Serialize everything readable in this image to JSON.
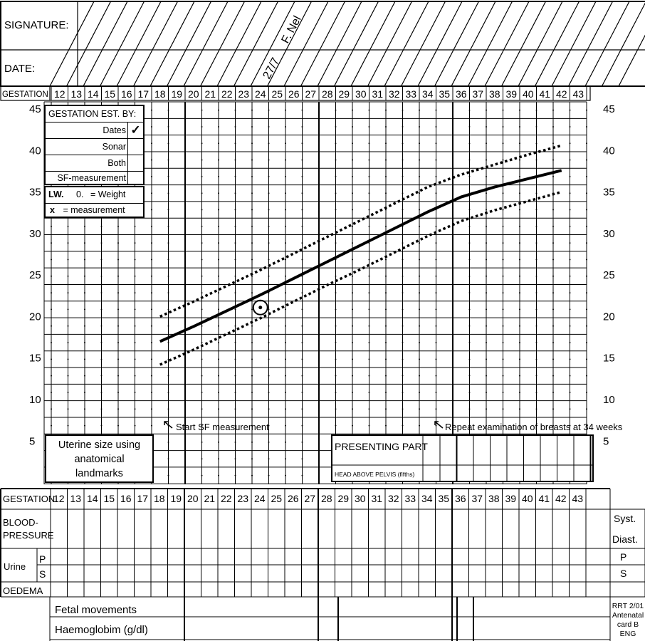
{
  "header": {
    "signature_label": "SIGNATURE:",
    "date_label": "DATE:",
    "entry_signature": "F. Nel",
    "entry_date": "27/7"
  },
  "gestation_label": "GESTATION",
  "weeks": [
    "12",
    "13",
    "14",
    "15",
    "16",
    "17",
    "18",
    "19",
    "20",
    "21",
    "22",
    "23",
    "24",
    "25",
    "26",
    "27",
    "28",
    "29",
    "30",
    "31",
    "32",
    "33",
    "34",
    "35",
    "36",
    "37",
    "38",
    "39",
    "40",
    "41",
    "42",
    "43"
  ],
  "y_ticks": [
    "45",
    "40",
    "35",
    "30",
    "25",
    "20",
    "15",
    "10",
    "5"
  ],
  "legend_est": {
    "title": "GESTATION EST. BY:",
    "rows": [
      {
        "label": "Dates",
        "mark": "✓"
      },
      {
        "label": "Sonar",
        "mark": ""
      },
      {
        "label": "Both",
        "mark": ""
      },
      {
        "label": "SF-measurement",
        "mark": ""
      }
    ]
  },
  "legend_symbols": {
    "lw": "LW.",
    "weight_symbol": "0.",
    "weight_text": "= Weight",
    "meas_symbol": "x",
    "meas_text": "= measurement"
  },
  "annotations": {
    "start_sf": "Start SF measurement",
    "repeat_breasts": "Repeat examination of breasts at 34 weeks"
  },
  "uterine_box": {
    "line1": "Uterine size using",
    "line2": "anatomical",
    "line3": "landmarks"
  },
  "presenting": {
    "title": "PRESENTING PART",
    "sub": "HEAD ABOVE PELVIS (fifths)"
  },
  "lower_table": {
    "bp1": "BLOOD-",
    "bp2": "PRESSURE",
    "syst": "Syst.",
    "diast": "Diast.",
    "urine": "Urine",
    "p": "P",
    "s": "S",
    "oedema": "OEDEMA",
    "fetal": "Fetal movements",
    "haemo": "Haemoglobim (g/dl)"
  },
  "footer_code": {
    "l1": "RRT 2/01",
    "l2": "Antenatal",
    "l3": "card B",
    "l4": "ENG"
  },
  "chart_data": {
    "type": "line",
    "xlabel": "GESTATION",
    "ylabel": "",
    "xlim": [
      12,
      43
    ],
    "ylim": [
      2,
      45
    ],
    "series": [
      {
        "style": "solid",
        "x": [
          18,
          20,
          22,
          24,
          26,
          28,
          30,
          32,
          34,
          36,
          38,
          40,
          42
        ],
        "y": [
          17,
          18.8,
          20.7,
          22.6,
          24.6,
          26.6,
          28.6,
          30.6,
          32.6,
          34.4,
          35.6,
          36.6,
          37.6
        ]
      },
      {
        "style": "dotted-upper",
        "x": [
          18,
          20,
          22,
          24,
          26,
          28,
          30,
          32,
          34,
          36,
          38,
          40,
          42
        ],
        "y": [
          20,
          21.8,
          23.7,
          25.6,
          27.6,
          29.6,
          31.6,
          33.6,
          35.6,
          37.1,
          38.3,
          39.5,
          40.6
        ]
      },
      {
        "style": "dotted-lower",
        "x": [
          18,
          20,
          22,
          24,
          26,
          28,
          30,
          32,
          34,
          36,
          38,
          40,
          42
        ],
        "y": [
          14.2,
          16,
          17.9,
          19.8,
          21.8,
          23.8,
          25.7,
          27.7,
          29.7,
          31.5,
          32.8,
          33.9,
          35
        ]
      }
    ],
    "points": [
      {
        "x": 24,
        "y": 21,
        "marker": "circled-dot"
      }
    ]
  }
}
